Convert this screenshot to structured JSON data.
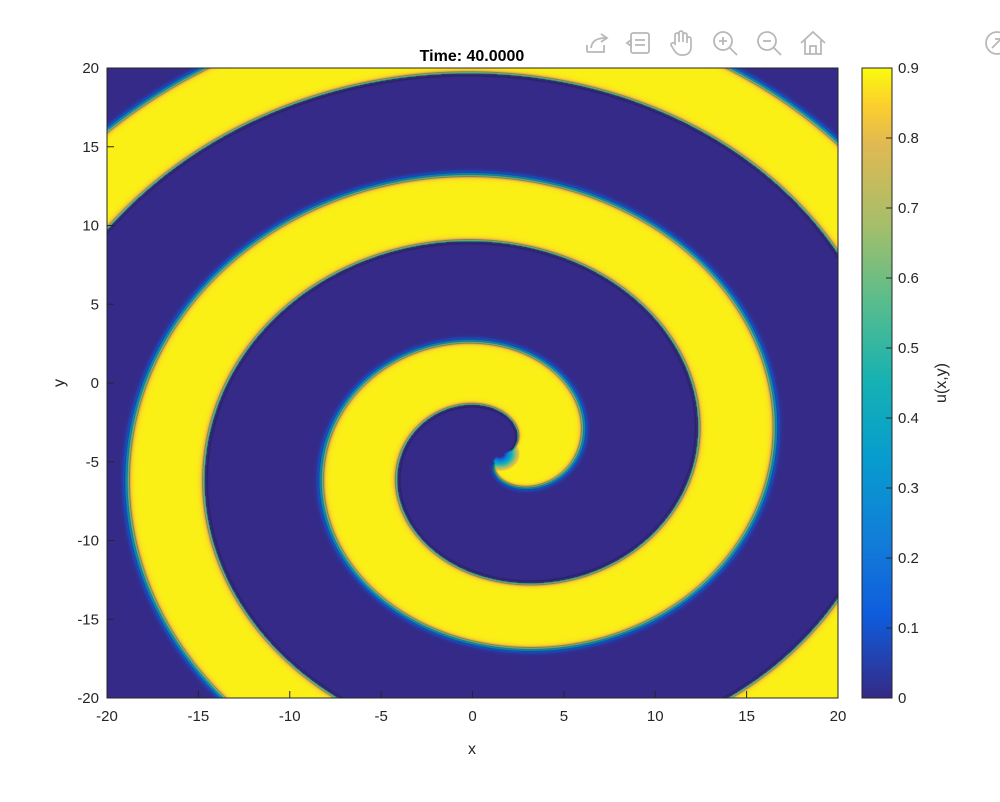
{
  "toolbar": {
    "buttons": [
      {
        "name": "export-icon"
      },
      {
        "name": "data-tips-icon"
      },
      {
        "name": "pan-hand-icon"
      },
      {
        "name": "zoom-in-icon"
      },
      {
        "name": "zoom-out-icon"
      },
      {
        "name": "home-restore-view-icon"
      }
    ],
    "restore_icon": "undock-arrow-icon",
    "icon_color": "#b8b8b8"
  },
  "chart_data": {
    "type": "heatmap",
    "title": "Time: 40.0000",
    "xlabel": "x",
    "ylabel": "y",
    "colorbar_label": "u(x,y)",
    "xlim": [
      -20,
      20
    ],
    "ylim": [
      -20,
      20
    ],
    "clim": [
      0,
      0.9
    ],
    "x_ticks": [
      -20,
      -15,
      -10,
      -5,
      0,
      5,
      10,
      15,
      20
    ],
    "y_ticks": [
      -20,
      -15,
      -10,
      -5,
      0,
      5,
      10,
      15,
      20
    ],
    "colorbar_ticks": [
      0,
      0.1,
      0.2,
      0.3,
      0.4,
      0.5,
      0.6,
      0.7,
      0.8,
      0.9
    ],
    "colormap": "parula",
    "low_color": "#3b2b9e",
    "high_color": "#f7f34a",
    "field": {
      "description_of_values": "u(x,y) two-phase field forming an Archimedean spiral wave",
      "spiral_center": [
        1.5,
        -4.5
      ],
      "arm_wavelength": 10.7,
      "arm_fraction_high": 0.4,
      "u_low": 0,
      "u_high": 0.9
    }
  }
}
